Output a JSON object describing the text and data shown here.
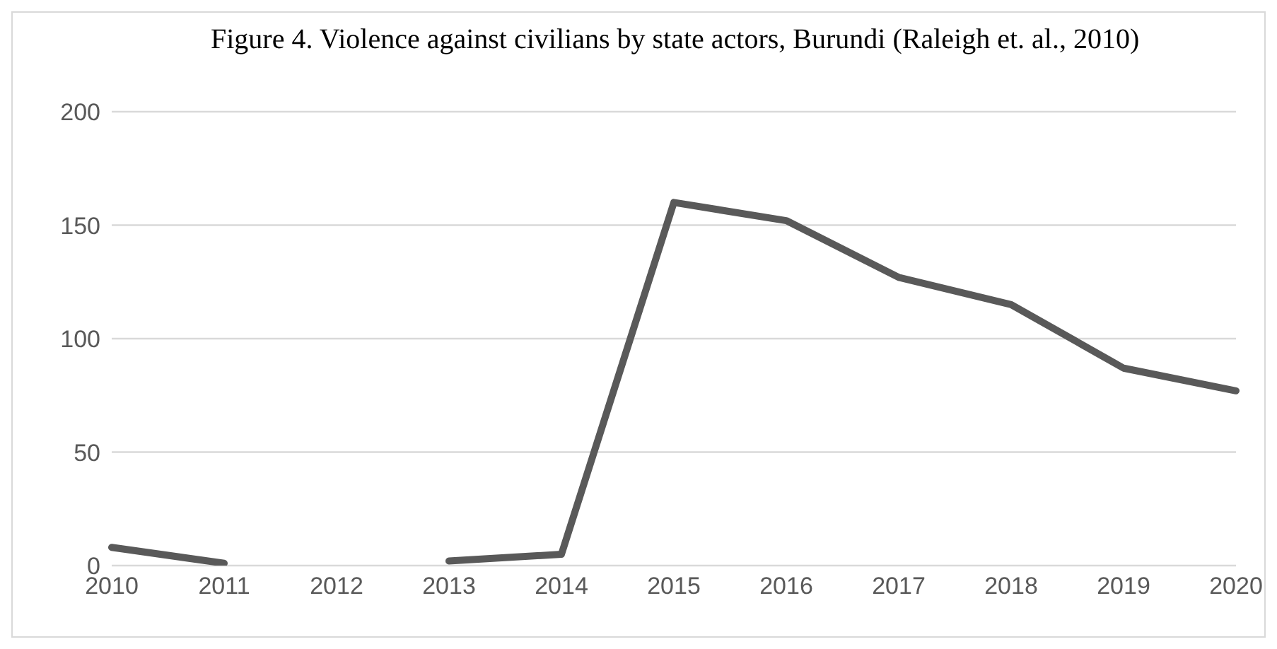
{
  "chart_data": {
    "type": "line",
    "title": "Figure 4. Violence against civilians by state actors, Burundi (Raleigh et. al., 2010)",
    "categories": [
      "2010",
      "2011",
      "2012",
      "2013",
      "2014",
      "2015",
      "2016",
      "2017",
      "2018",
      "2019",
      "2020"
    ],
    "series": [
      {
        "color": "#595959",
        "values": [
          8,
          1,
          null,
          2,
          5,
          160,
          152,
          127,
          115,
          87,
          77
        ]
      }
    ],
    "ylim": [
      0,
      200
    ],
    "yticks": [
      0,
      50,
      100,
      150,
      200
    ],
    "grid": "y",
    "legend": false,
    "marker": "none",
    "line_style": "solid"
  }
}
